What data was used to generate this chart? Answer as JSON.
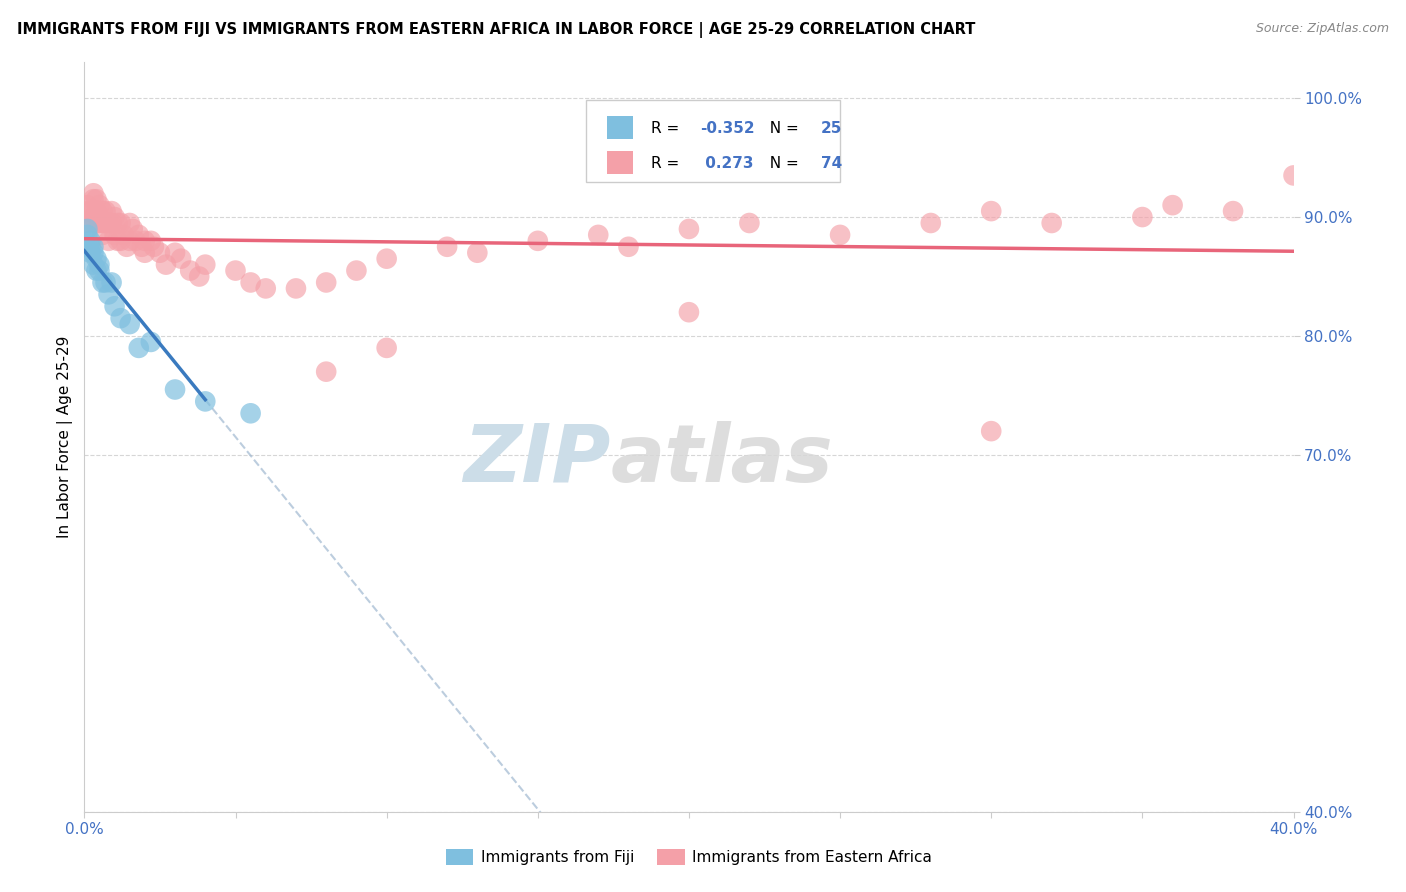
{
  "title": "IMMIGRANTS FROM FIJI VS IMMIGRANTS FROM EASTERN AFRICA IN LABOR FORCE | AGE 25-29 CORRELATION CHART",
  "source": "Source: ZipAtlas.com",
  "ylabel": "In Labor Force | Age 25-29",
  "ylabel_values": [
    0.4,
    0.7,
    0.8,
    0.9,
    1.0
  ],
  "fiji_R": -0.352,
  "fiji_N": 25,
  "eastern_africa_R": 0.273,
  "eastern_africa_N": 74,
  "fiji_color": "#7fbfdf",
  "eastern_africa_color": "#f4a0a8",
  "fiji_line_color": "#3a7abf",
  "eastern_africa_line_color": "#e8657a",
  "xlim": [
    0.0,
    0.4
  ],
  "ylim": [
    0.4,
    1.03
  ],
  "figsize": [
    14.06,
    8.92
  ],
  "dpi": 100,
  "fiji_x": [
    0.0,
    0.001,
    0.001,
    0.002,
    0.002,
    0.002,
    0.003,
    0.003,
    0.003,
    0.004,
    0.004,
    0.005,
    0.005,
    0.006,
    0.007,
    0.008,
    0.009,
    0.01,
    0.012,
    0.015,
    0.018,
    0.022,
    0.03,
    0.04,
    0.055
  ],
  "fiji_y": [
    0.875,
    0.885,
    0.89,
    0.88,
    0.875,
    0.87,
    0.875,
    0.87,
    0.86,
    0.865,
    0.855,
    0.86,
    0.855,
    0.845,
    0.845,
    0.835,
    0.845,
    0.825,
    0.815,
    0.81,
    0.79,
    0.795,
    0.755,
    0.745,
    0.735
  ],
  "ea_x": [
    0.0,
    0.001,
    0.001,
    0.002,
    0.002,
    0.003,
    0.003,
    0.003,
    0.004,
    0.004,
    0.004,
    0.005,
    0.005,
    0.005,
    0.006,
    0.006,
    0.006,
    0.007,
    0.007,
    0.008,
    0.008,
    0.009,
    0.009,
    0.01,
    0.01,
    0.011,
    0.011,
    0.012,
    0.012,
    0.013,
    0.014,
    0.015,
    0.015,
    0.016,
    0.017,
    0.018,
    0.019,
    0.02,
    0.02,
    0.022,
    0.023,
    0.025,
    0.027,
    0.03,
    0.032,
    0.035,
    0.038,
    0.04,
    0.05,
    0.055,
    0.06,
    0.07,
    0.08,
    0.09,
    0.1,
    0.12,
    0.13,
    0.15,
    0.17,
    0.18,
    0.2,
    0.22,
    0.25,
    0.28,
    0.3,
    0.32,
    0.35,
    0.36,
    0.38,
    0.4,
    0.08,
    0.1,
    0.2,
    0.3
  ],
  "ea_y": [
    0.895,
    0.91,
    0.905,
    0.905,
    0.895,
    0.92,
    0.915,
    0.9,
    0.915,
    0.905,
    0.895,
    0.91,
    0.9,
    0.895,
    0.905,
    0.895,
    0.885,
    0.905,
    0.895,
    0.895,
    0.88,
    0.905,
    0.895,
    0.9,
    0.885,
    0.895,
    0.88,
    0.895,
    0.88,
    0.885,
    0.875,
    0.895,
    0.88,
    0.89,
    0.88,
    0.885,
    0.875,
    0.88,
    0.87,
    0.88,
    0.875,
    0.87,
    0.86,
    0.87,
    0.865,
    0.855,
    0.85,
    0.86,
    0.855,
    0.845,
    0.84,
    0.84,
    0.845,
    0.855,
    0.865,
    0.875,
    0.87,
    0.88,
    0.885,
    0.875,
    0.89,
    0.895,
    0.885,
    0.895,
    0.905,
    0.895,
    0.9,
    0.91,
    0.905,
    0.935,
    0.77,
    0.79,
    0.82,
    0.72
  ]
}
